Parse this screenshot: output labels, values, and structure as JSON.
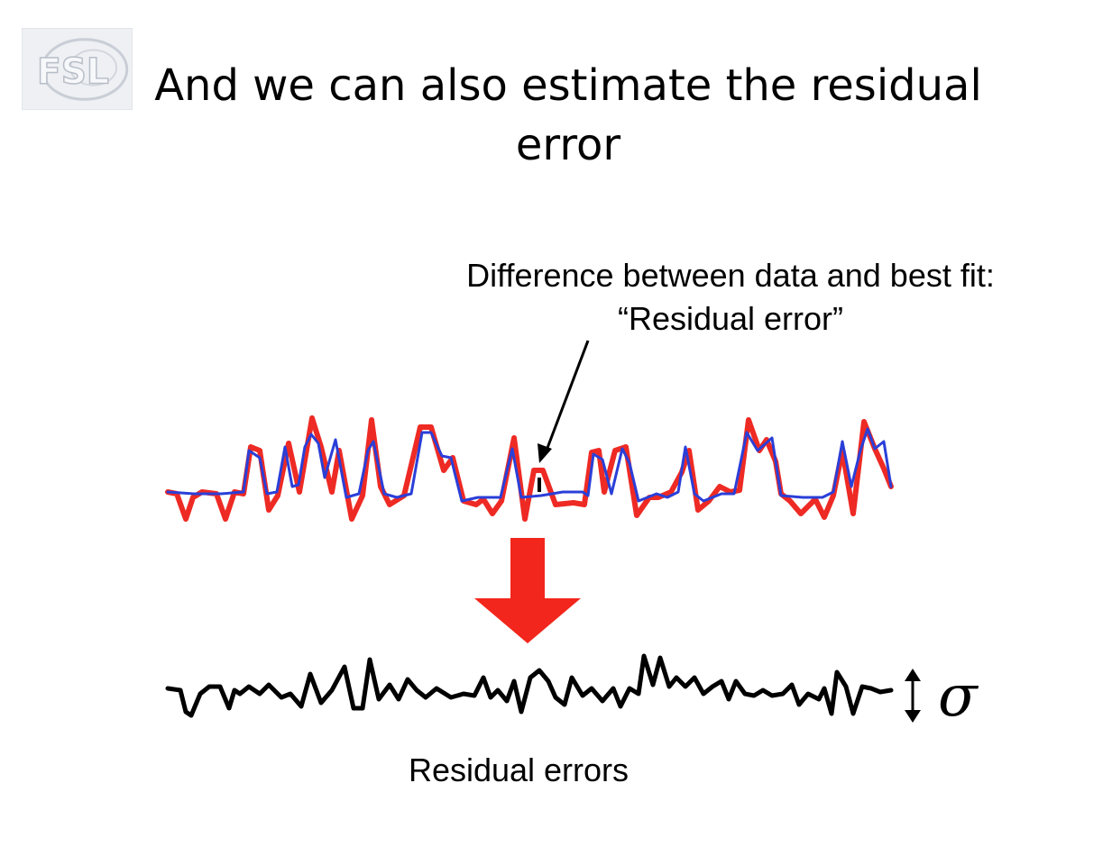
{
  "logo": {
    "text": "FSL"
  },
  "title": "And we can also estimate the residual error",
  "annotation": "Difference between data and best fit: “Residual error”",
  "residual_label": "Residual errors",
  "sigma": "σ",
  "colors": {
    "data_series": "#ee2a24",
    "fit_series": "#2a3fd8",
    "residual_series": "#000000",
    "down_arrow": "#f2261c"
  },
  "icons": {
    "down_arrow": "thick-down-arrow-icon",
    "double_arrow": "double-headed-vertical-arrow-icon",
    "pointer_arrow": "pointer-arrow-icon"
  }
}
